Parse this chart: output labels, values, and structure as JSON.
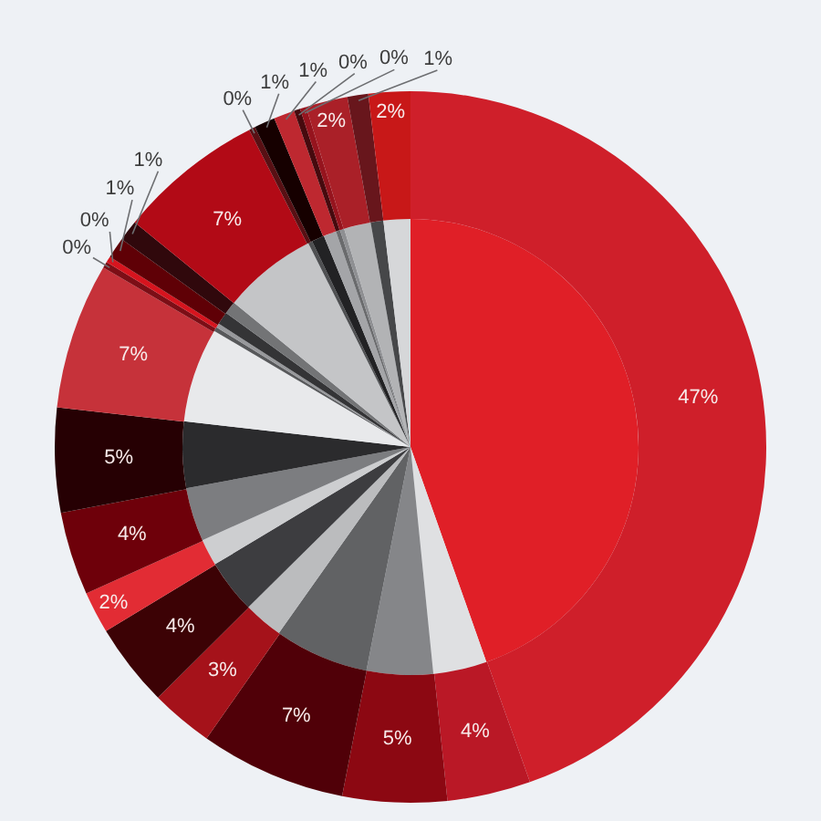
{
  "chart_data": {
    "type": "pie",
    "categories": [
      null,
      null,
      null,
      null,
      null,
      null,
      null,
      null,
      null,
      null,
      null,
      null,
      null,
      null,
      null,
      null,
      null,
      null,
      null,
      null,
      null,
      null,
      null
    ],
    "series": [
      {
        "values": [
          44.6,
          3.8,
          4.7,
          6.7,
          2.8,
          3.8,
          1.9,
          3.8,
          4.7,
          6.7,
          0.3,
          0.3,
          0.9,
          0.9,
          6.7,
          0.3,
          0.9,
          0.9,
          0.3,
          0.3,
          1.9,
          0.9,
          1.9
        ],
        "colors": [
          "#e01f27",
          "#dfe0e2",
          "#858689",
          "#616264",
          "#bbbcbe",
          "#3d3d40",
          "#cdced0",
          "#7c7d80",
          "#2b2b2d",
          "#e8e9eb",
          "#58595b",
          "#97989b",
          "#343436",
          "#737476",
          "#c4c5c7",
          "#4f5052",
          "#222224",
          "#a4a5a8",
          "#6a6b6d",
          "#8e8f92",
          "#b2b3b5",
          "#464749",
          "#d6d7d9"
        ]
      },
      {
        "values": [
          47,
          4,
          5,
          7,
          3,
          4,
          2,
          4,
          5,
          7,
          0.3,
          0.3,
          1,
          1,
          7,
          0.3,
          1,
          1,
          0.3,
          0.3,
          2,
          1,
          2
        ],
        "colors": [
          "#cf1f2a",
          "#ba1826",
          "#8c0812",
          "#500008",
          "#a5121a",
          "#3c0205",
          "#e22c34",
          "#6e000a",
          "#260003",
          "#c6323a",
          "#7c0e16",
          "#d6141e",
          "#5f0006",
          "#30080c",
          "#b20a16",
          "#581014",
          "#160000",
          "#be2830",
          "#460a0e",
          "#96141e",
          "#aa2028",
          "#68161c",
          "#c81818"
        ],
        "value_labels": [
          "47%",
          "4%",
          "5%",
          "7%",
          "3%",
          "4%",
          "2%",
          "4%",
          "5%",
          "7%",
          "0%",
          "0%",
          "1%",
          "1%",
          "7%",
          "0%",
          "1%",
          "1%",
          "0%",
          "0%",
          "2%",
          "1%",
          "2%"
        ]
      }
    ]
  }
}
